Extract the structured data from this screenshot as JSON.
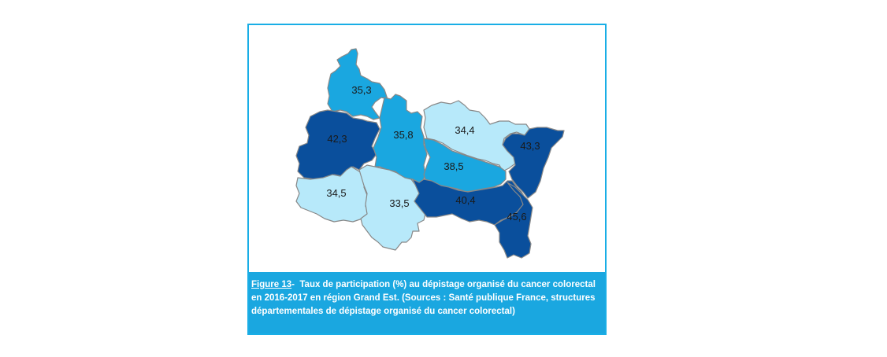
{
  "colors": {
    "frame_border": "#19aee6",
    "caption_bg": "#1aa7e0",
    "caption_text": "#ffffff",
    "very_light": "#b7e9fa",
    "light": "#55c8ef",
    "medium": "#1aa7e0",
    "dark": "#0a4f9c",
    "border": "#888888",
    "label_text": "#1a1a1a"
  },
  "map": {
    "departments": [
      {
        "value": "35,3",
        "shade": "medium"
      },
      {
        "value": "42,3",
        "shade": "dark"
      },
      {
        "value": "35,8",
        "shade": "medium"
      },
      {
        "value": "34,4",
        "shade": "very_light"
      },
      {
        "value": "43,3",
        "shade": "dark"
      },
      {
        "value": "38,5",
        "shade": "medium"
      },
      {
        "value": "34,5",
        "shade": "very_light"
      },
      {
        "value": "33,5",
        "shade": "very_light"
      },
      {
        "value": "40,4",
        "shade": "dark"
      },
      {
        "value": "45,6",
        "shade": "dark"
      }
    ]
  },
  "caption": {
    "figure_label": "Figure 13",
    "separator": "-  ",
    "text": "Taux de participation (%) au dépistage organisé du cancer colorectal en 2016-2017 en région Grand Est. (Sources : Santé publique France, structures départementales de dépistage organisé du cancer colorectal)"
  }
}
